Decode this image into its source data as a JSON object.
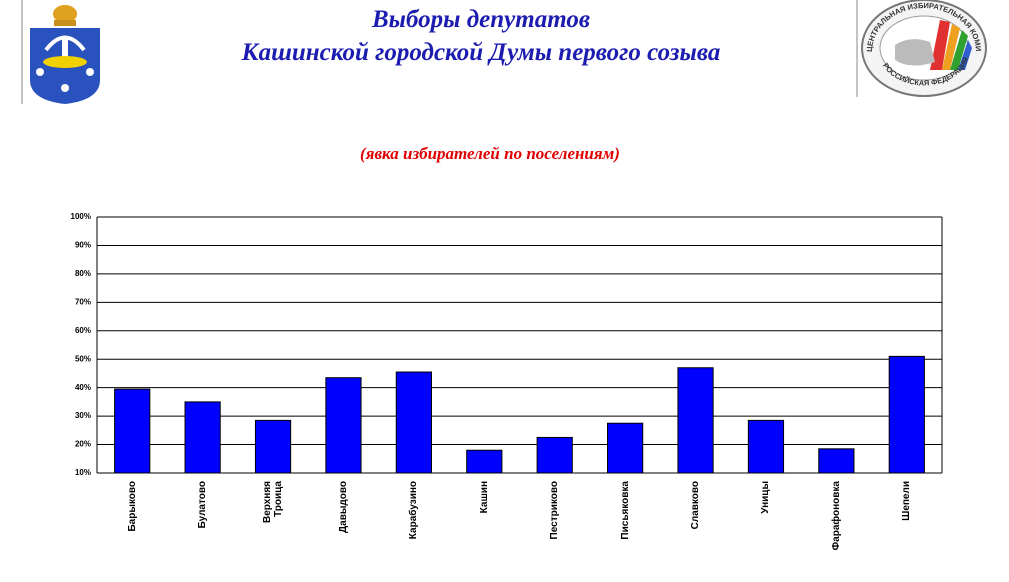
{
  "header": {
    "title_lines": [
      "Выборы депутатов",
      "Кашинской городской Думы первого созыва"
    ],
    "emblem": {
      "top_text": "ЦЕНТРАЛЬНАЯ ИЗБИРАТЕЛЬНАЯ КОМИССИЯ",
      "bottom_text": "РОССИЙСКАЯ ФЕДЕРАЦИЯ"
    }
  },
  "chart_data": {
    "type": "bar",
    "title": "(явка избирателей по поселениям)",
    "categories": [
      "Барыково",
      "Булатово",
      "Верхняя Троица",
      "Давыдово",
      "Карабузино",
      "Кашин",
      "Пестриково",
      "Письяковка",
      "Славково",
      "Уницы",
      "Фарафоновка",
      "Шепели"
    ],
    "values": [
      39.5,
      35,
      28.5,
      43.5,
      45.5,
      18,
      22.5,
      27.5,
      47,
      28.5,
      18.5,
      51
    ],
    "color": "#0000ff",
    "ylim": [
      10,
      100
    ],
    "yticks": [
      {
        "value": 10,
        "label": "10%"
      },
      {
        "value": 20,
        "label": "20%"
      },
      {
        "value": 30,
        "label": "30%"
      },
      {
        "value": 40,
        "label": "40%"
      },
      {
        "value": 50,
        "label": "50%"
      },
      {
        "value": 60,
        "label": "60%"
      },
      {
        "value": 70,
        "label": "70%"
      },
      {
        "value": 80,
        "label": "80%"
      },
      {
        "value": 90,
        "label": "90%"
      },
      {
        "value": 100,
        "label": "100%"
      }
    ],
    "grid": true
  }
}
